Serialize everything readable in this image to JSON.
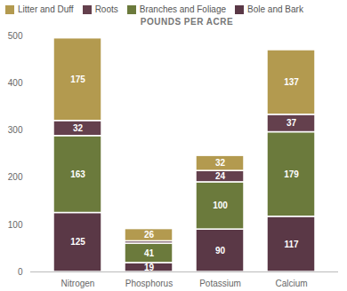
{
  "chart_data": {
    "type": "bar",
    "title": "POUNDS PER ACRE",
    "stacked": true,
    "data_labels": true,
    "grid": false,
    "legend": "top",
    "categories": [
      "Nitrogen",
      "Phosphorus",
      "Potassium",
      "Calcium"
    ],
    "ylim": [
      0,
      500
    ],
    "yticks": [
      0,
      100,
      200,
      300,
      400,
      500
    ],
    "series": [
      {
        "name": "Bole and Bark",
        "color": "#5a3846",
        "values": [
          125,
          19,
          90,
          117
        ]
      },
      {
        "name": "Branches and Foliage",
        "color": "#6b7a3c",
        "values": [
          163,
          41,
          100,
          179
        ]
      },
      {
        "name": "Roots",
        "color": "#64404d",
        "values": [
          32,
          5,
          24,
          37
        ],
        "value_labels": [
          "32",
          null,
          "24",
          "37"
        ]
      },
      {
        "name": "Litter and Duff",
        "color": "#b39a4f",
        "values": [
          175,
          26,
          32,
          137
        ]
      }
    ]
  }
}
